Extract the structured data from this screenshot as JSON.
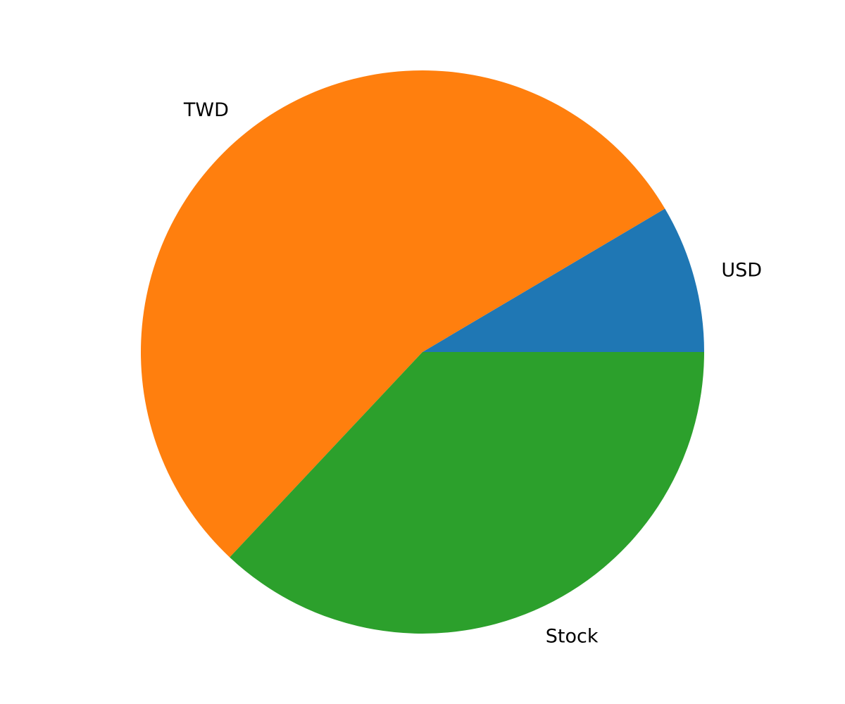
{
  "chart_data": {
    "type": "pie",
    "title": "",
    "counterclock": true,
    "startangle_deg": 0,
    "slices": [
      {
        "label": "USD",
        "value": 8.5,
        "color": "#1f77b4"
      },
      {
        "label": "TWD",
        "value": 54.5,
        "color": "#ff7f0e"
      },
      {
        "label": "Stock",
        "value": 37.0,
        "color": "#2ca02c"
      }
    ],
    "legend": "none"
  }
}
